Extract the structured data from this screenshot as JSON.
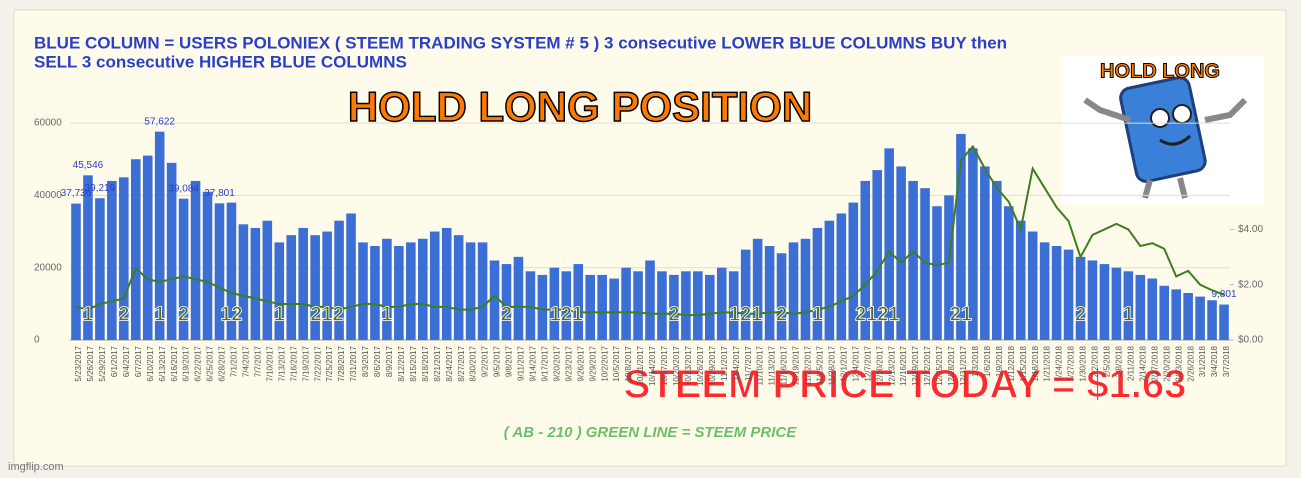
{
  "chart_data": {
    "type": "bar_line",
    "title_lines": [
      "BLUE COLUMN = USERS POLONIEX  ( STEEM TRADING SYSTEM # 5 )  3 consecutive LOWER BLUE COLUMNS BUY  then",
      "SELL 3 consecutive HIGHER BLUE COLUMNS"
    ],
    "headline": "HOLD  LONG  POSITION",
    "badge": "HOLD  LONG",
    "price_note": "STEEM  PRICE  TODAY =  $1.63",
    "footer_note": "( AB - 210 ) GREEN LINE = STEEM PRICE",
    "watermark": "imgflip.com",
    "categories": [
      "5/23/2017",
      "5/26/2017",
      "5/29/2017",
      "6/1/2017",
      "6/4/2017",
      "6/7/2017",
      "6/10/2017",
      "6/13/2017",
      "6/16/2017",
      "6/19/2017",
      "6/22/2017",
      "6/25/2017",
      "6/28/2017",
      "7/1/2017",
      "7/4/2017",
      "7/7/2017",
      "7/10/2017",
      "7/13/2017",
      "7/16/2017",
      "7/19/2017",
      "7/22/2017",
      "7/25/2017",
      "7/28/2017",
      "7/31/2017",
      "8/3/2017",
      "8/6/2017",
      "8/9/2017",
      "8/12/2017",
      "8/15/2017",
      "8/18/2017",
      "8/21/2017",
      "8/24/2017",
      "8/27/2017",
      "8/30/2017",
      "9/2/2017",
      "9/5/2017",
      "9/8/2017",
      "9/11/2017",
      "9/14/2017",
      "9/17/2017",
      "9/20/2017",
      "9/23/2017",
      "9/26/2017",
      "9/29/2017",
      "10/2/2017",
      "10/5/2017",
      "10/8/2017",
      "10/11/2017",
      "10/14/2017",
      "10/17/2017",
      "10/20/2017",
      "10/23/2017",
      "10/26/2017",
      "10/29/2017",
      "11/1/2017",
      "11/4/2017",
      "11/7/2017",
      "11/10/2017",
      "11/13/2017",
      "11/16/2017",
      "11/19/2017",
      "11/22/2017",
      "11/25/2017",
      "11/28/2017",
      "12/1/2017",
      "12/4/2017",
      "12/7/2017",
      "12/10/2017",
      "12/13/2017",
      "12/16/2017",
      "12/19/2017",
      "12/22/2017",
      "12/25/2017",
      "12/28/2017",
      "12/31/2017",
      "1/3/2018",
      "1/6/2018",
      "1/9/2018",
      "1/12/2018",
      "1/15/2018",
      "1/18/2018",
      "1/21/2018",
      "1/24/2018",
      "1/27/2018",
      "1/30/2018",
      "2/2/2018",
      "2/5/2018",
      "2/8/2018",
      "2/11/2018",
      "2/14/2018",
      "2/17/2018",
      "2/20/2018",
      "2/23/2018",
      "2/26/2018",
      "3/1/2018",
      "3/4/2018",
      "3/7/2018"
    ],
    "series": [
      {
        "color": "#3b6fd6",
        "values": [
          37736,
          45546,
          39219,
          44000,
          45000,
          50000,
          51000,
          57622,
          49000,
          39084,
          44000,
          41000,
          37801,
          38000,
          32000,
          31000,
          33000,
          27000,
          29000,
          31000,
          29000,
          30000,
          33000,
          35000,
          27000,
          26000,
          28000,
          26000,
          27000,
          28000,
          30000,
          31000,
          29000,
          27000,
          27000,
          22000,
          21000,
          23000,
          19000,
          18000,
          20000,
          19000,
          21000,
          18000,
          18000,
          17000,
          20000,
          19000,
          22000,
          19000,
          18000,
          19000,
          19000,
          18000,
          20000,
          19000,
          25000,
          28000,
          26000,
          24000,
          27000,
          28000,
          31000,
          33000,
          35000,
          38000,
          44000,
          47000,
          53000,
          48000,
          44000,
          42000,
          37000,
          40000,
          57000,
          53000,
          48000,
          44000,
          37000,
          33000,
          30000,
          27000,
          26000,
          25000,
          23000,
          22000,
          21000,
          20000,
          19000,
          18000,
          17000,
          15000,
          14000,
          13000,
          12000,
          11000,
          9801
        ],
        "value_labels": [
          "37,736",
          "45,546",
          "39,219",
          null,
          null,
          null,
          null,
          "57,622",
          null,
          "39,084",
          null,
          null,
          "37,801",
          null,
          null,
          null,
          null,
          null,
          null,
          null,
          null,
          null,
          null,
          null,
          null,
          null,
          null,
          null,
          null,
          null,
          null,
          null,
          null,
          null,
          null,
          null,
          null,
          null,
          null,
          null,
          null,
          null,
          null,
          null,
          null,
          null,
          null,
          null,
          null,
          null,
          null,
          null,
          null,
          null,
          null,
          null,
          null,
          null,
          null,
          null,
          null,
          null,
          null,
          null,
          null,
          null,
          null,
          null,
          null,
          null,
          null,
          null,
          null,
          null,
          null,
          null,
          null,
          null,
          null,
          null,
          null,
          null,
          null,
          null,
          null,
          null,
          null,
          null,
          null,
          null,
          null,
          null,
          null,
          null,
          null,
          null,
          "9,801"
        ]
      },
      {
        "color": "#3f7d23",
        "axis": "y2",
        "values": [
          1.2,
          1.1,
          1.3,
          1.4,
          1.5,
          2.6,
          2.2,
          2.1,
          2.2,
          2.3,
          2.2,
          2.1,
          1.9,
          1.7,
          1.6,
          1.5,
          1.4,
          1.3,
          1.3,
          1.3,
          1.2,
          1.2,
          1.1,
          1.2,
          1.3,
          1.3,
          1.2,
          1.2,
          1.3,
          1.3,
          1.2,
          1.2,
          1.1,
          1.1,
          1.2,
          1.6,
          1.2,
          1.2,
          1.2,
          1.1,
          1.1,
          1.1,
          1.0,
          1.0,
          1.0,
          1.0,
          1.0,
          1.0,
          0.95,
          0.95,
          0.95,
          0.9,
          0.9,
          0.95,
          1.0,
          1.0,
          0.95,
          0.95,
          1.0,
          1.0,
          0.95,
          1.0,
          1.1,
          1.2,
          1.4,
          1.6,
          2.0,
          2.5,
          3.2,
          2.8,
          3.2,
          2.8,
          2.7,
          2.8,
          6.5,
          7.0,
          6.2,
          5.5,
          5.0,
          4.0,
          6.2,
          5.5,
          4.8,
          4.3,
          3.0,
          3.8,
          4.0,
          4.2,
          4.0,
          3.4,
          3.5,
          3.3,
          2.3,
          2.5,
          2.0,
          1.8,
          1.63
        ]
      }
    ],
    "signals": [
      null,
      "1",
      null,
      null,
      "2",
      null,
      null,
      "1",
      null,
      "2",
      null,
      null,
      null,
      "12",
      null,
      null,
      null,
      "1",
      null,
      null,
      null,
      "212",
      null,
      null,
      null,
      null,
      "1",
      null,
      null,
      null,
      null,
      null,
      null,
      null,
      null,
      null,
      "2",
      null,
      null,
      null,
      null,
      "121",
      null,
      null,
      null,
      null,
      null,
      null,
      null,
      null,
      "2",
      null,
      null,
      null,
      null,
      null,
      "121",
      null,
      null,
      "2",
      null,
      null,
      "1",
      null,
      null,
      null,
      null,
      "2121",
      null,
      null,
      null,
      null,
      null,
      null,
      "21",
      null,
      null,
      null,
      null,
      null,
      null,
      null,
      null,
      null,
      "2",
      null,
      null,
      null,
      "1",
      null,
      null,
      null,
      null,
      null,
      null,
      null,
      null
    ],
    "ylim": [
      0,
      65000
    ],
    "yticks": [
      0,
      20000,
      40000,
      60000
    ],
    "y2lim": [
      0,
      8.5
    ],
    "y2ticks": [
      {
        "value": 0,
        "label": "$0.00"
      },
      {
        "value": 2,
        "label": "$2.00"
      },
      {
        "value": 4,
        "label": "$4.00"
      }
    ],
    "grid": true
  }
}
